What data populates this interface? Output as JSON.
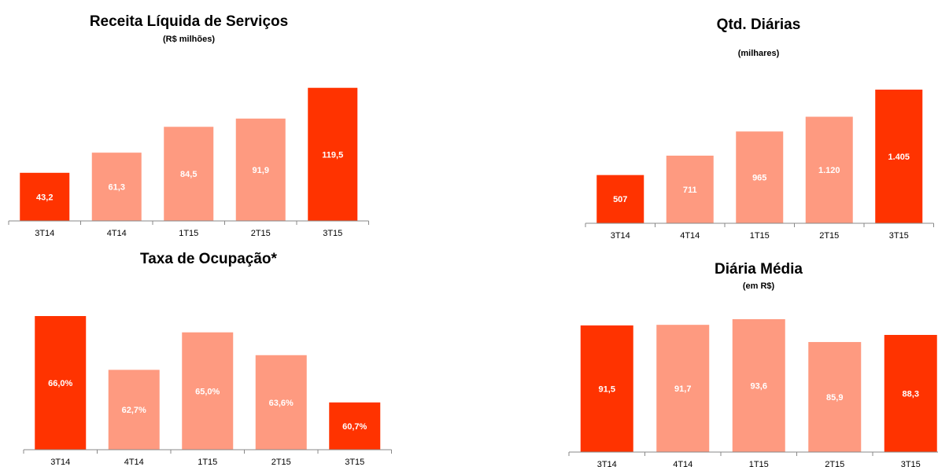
{
  "chart_data": [
    {
      "type": "bar",
      "title": "Receita Líquida de Serviços",
      "subtitle": "(R$ milhões)",
      "categories": [
        "3T14",
        "4T14",
        "1T15",
        "2T15",
        "3T15"
      ],
      "values": [
        43.2,
        61.3,
        84.5,
        91.9,
        119.5
      ],
      "value_labels": [
        "43,2",
        "61,3",
        "84,5",
        "91,9",
        "119,5"
      ],
      "colors": [
        "#ff3300",
        "#fe9a80",
        "#fe9a80",
        "#fe9a80",
        "#ff3300"
      ],
      "ylim": [
        0,
        120
      ]
    },
    {
      "type": "bar",
      "title": "Qtd. Diárias",
      "subtitle": "(milhares)",
      "categories": [
        "3T14",
        "4T14",
        "1T15",
        "2T15",
        "3T15"
      ],
      "values": [
        507,
        711,
        965,
        1120,
        1405
      ],
      "value_labels": [
        "507",
        "711",
        "965",
        "1.120",
        "1.405"
      ],
      "colors": [
        "#ff3300",
        "#fe9a80",
        "#fe9a80",
        "#fe9a80",
        "#ff3300"
      ],
      "ylim": [
        0,
        1405
      ]
    },
    {
      "type": "bar",
      "title": "Taxa de Ocupação*",
      "categories": [
        "3T14",
        "4T14",
        "1T15",
        "2T15",
        "3T15"
      ],
      "values": [
        66.0,
        62.7,
        65.0,
        63.6,
        60.7
      ],
      "value_labels": [
        "66,0%",
        "62,7%",
        "65,0%",
        "63,6%",
        "60,7%"
      ],
      "colors": [
        "#ff3300",
        "#fe9a80",
        "#fe9a80",
        "#fe9a80",
        "#ff3300"
      ],
      "ylim": [
        57.8,
        66.0
      ]
    },
    {
      "type": "bar",
      "title": "Diária Média",
      "subtitle": "(em R$)",
      "categories": [
        "3T14",
        "4T14",
        "1T15",
        "2T15",
        "3T15"
      ],
      "values": [
        91.5,
        91.7,
        93.6,
        85.9,
        88.3
      ],
      "value_labels": [
        "91,5",
        "91,7",
        "93,6",
        "85,9",
        "88,3"
      ],
      "colors": [
        "#ff3300",
        "#fe9a80",
        "#fe9a80",
        "#fe9a80",
        "#ff3300"
      ],
      "ylim": [
        48.8,
        93.6
      ]
    }
  ]
}
